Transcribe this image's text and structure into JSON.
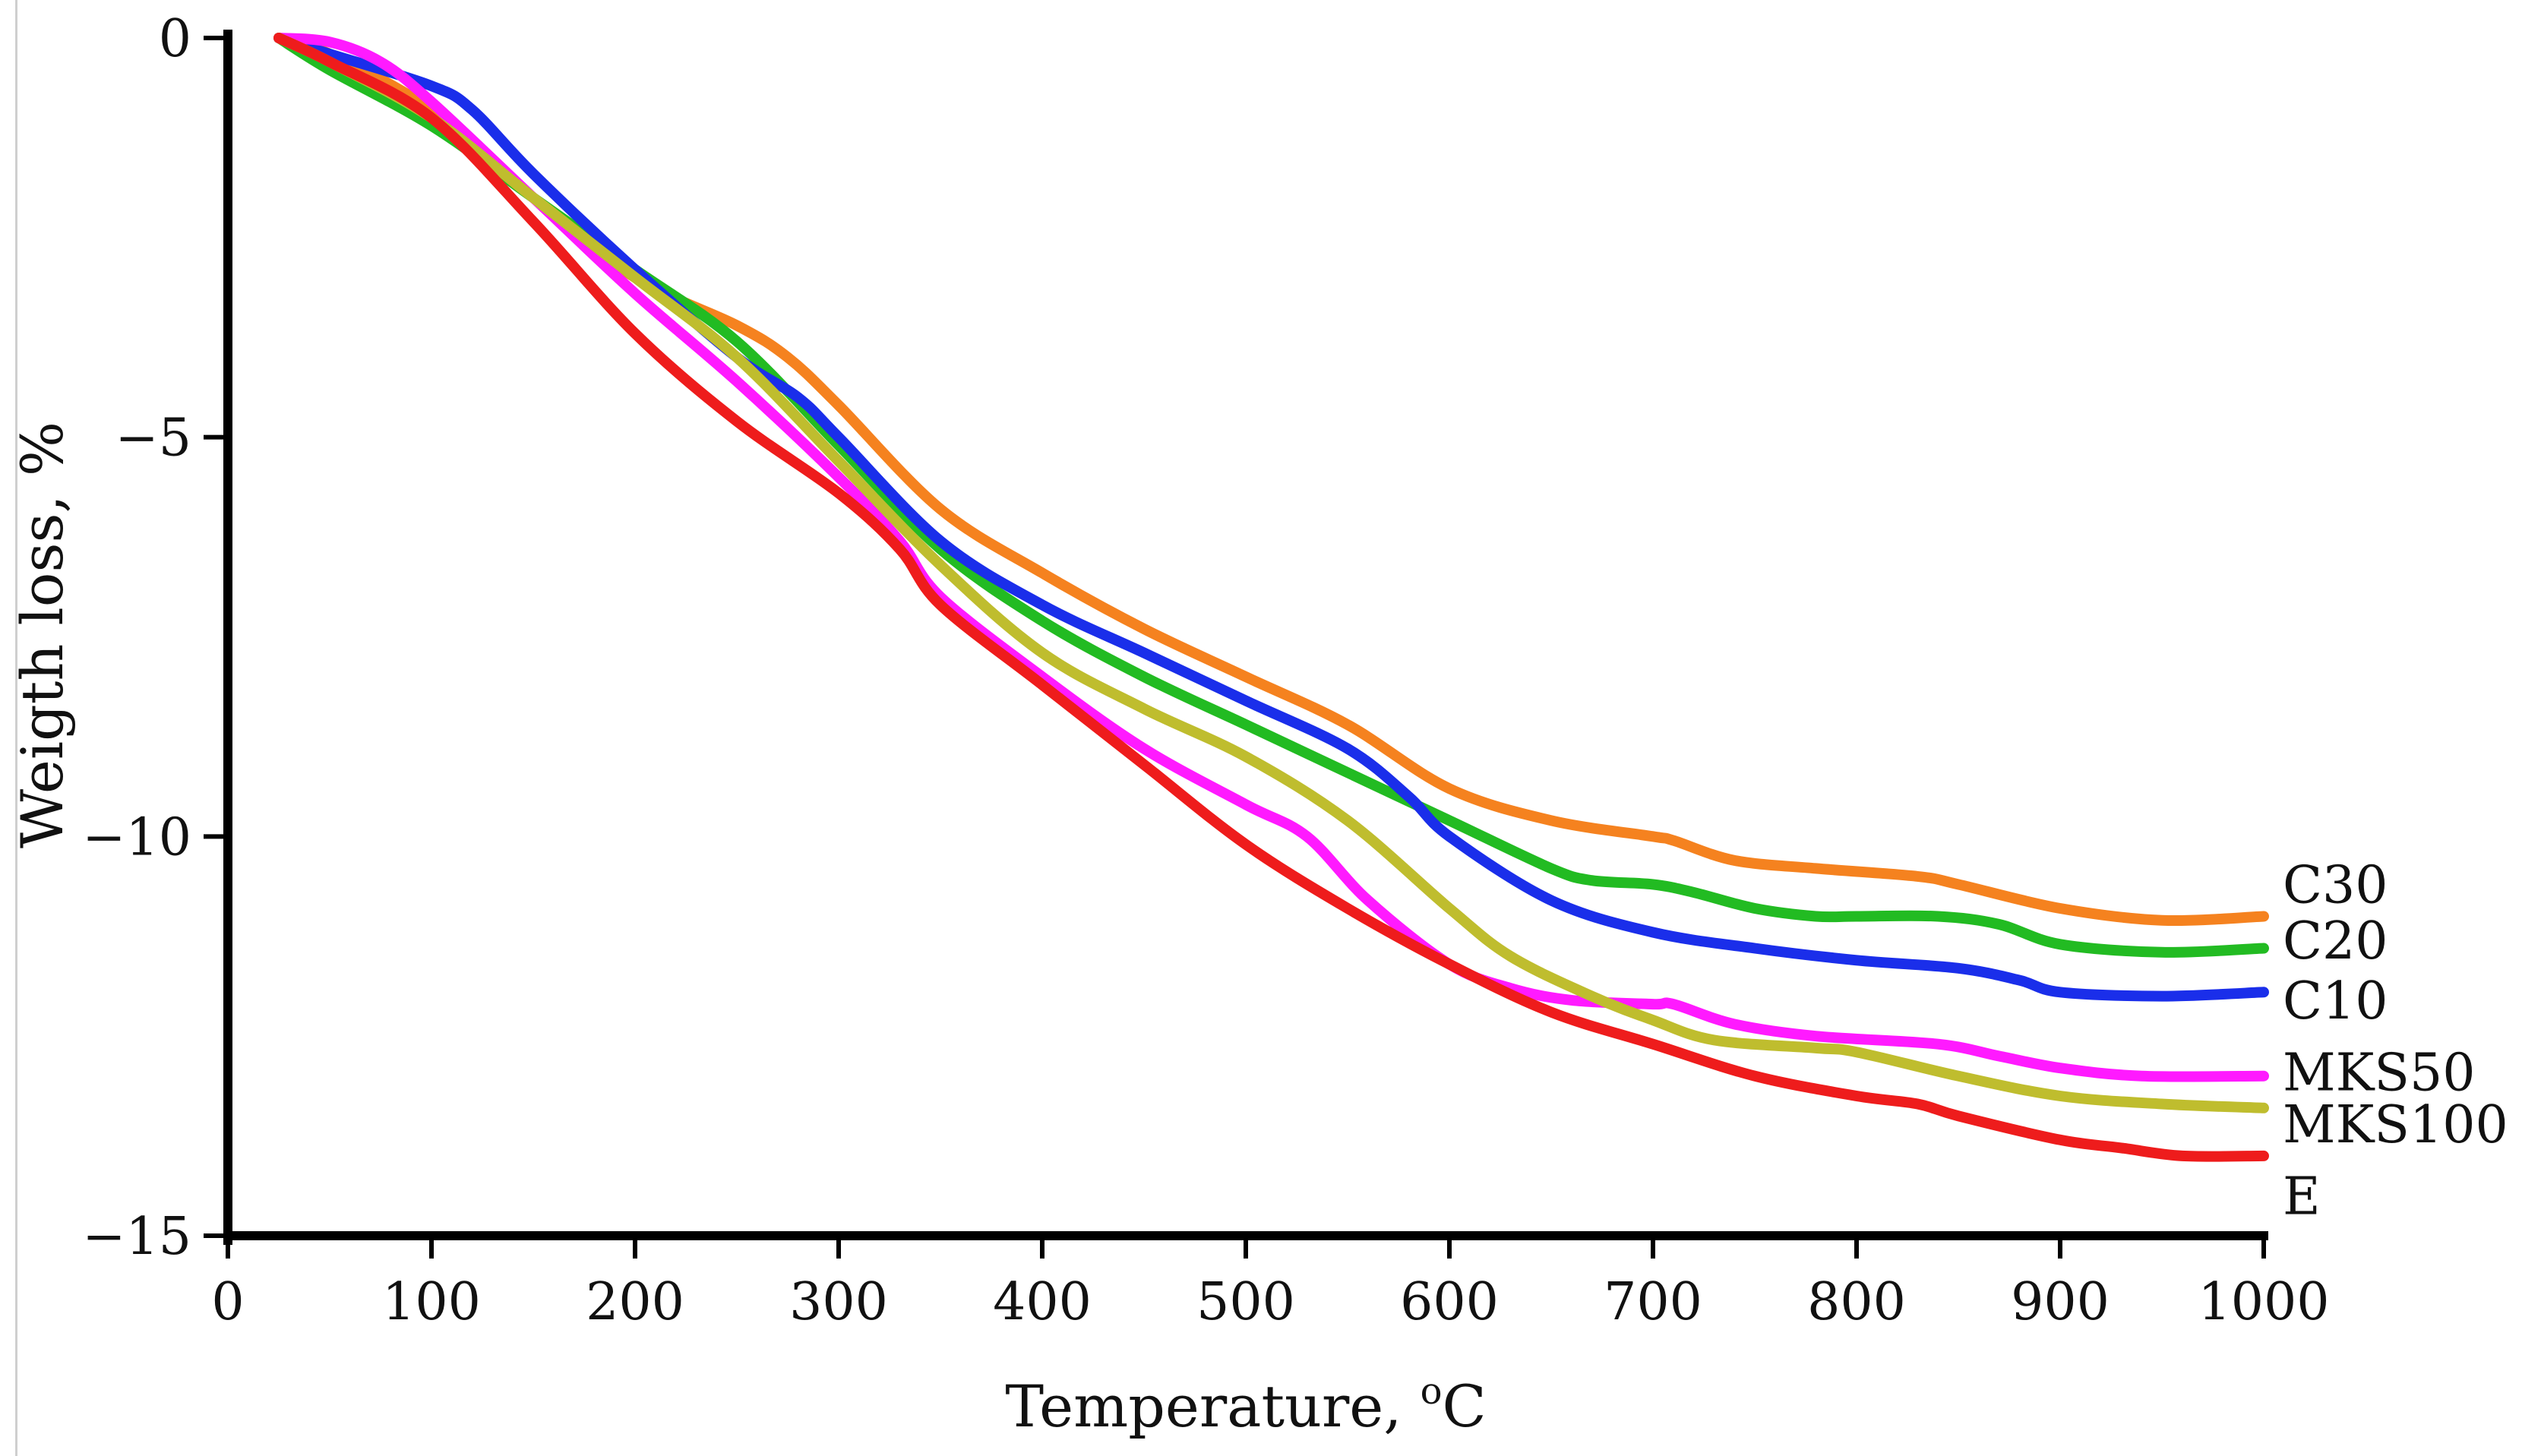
{
  "chart_data": {
    "type": "line",
    "title": "",
    "xlabel": "Temperature, ",
    "xlabel_superscript": "o",
    "xlabel_unit": "C",
    "ylabel": "Weigth loss, %",
    "xlim": [
      0,
      1000
    ],
    "ylim": [
      -15,
      0
    ],
    "x_ticks": [
      0,
      100,
      200,
      300,
      400,
      500,
      600,
      700,
      800,
      900,
      1000
    ],
    "x_tick_labels": [
      "0",
      "100",
      "200",
      "300",
      "400",
      "500",
      "600",
      "700",
      "800",
      "900",
      "1000"
    ],
    "y_ticks": [
      0,
      -5,
      -10,
      -15
    ],
    "y_tick_labels": [
      "0",
      "−5",
      "−10",
      "−15"
    ],
    "grid": false,
    "legend": "direct labels at right end of each line",
    "series": [
      {
        "name": "C30",
        "color": "#f5821f",
        "x": [
          25,
          50,
          100,
          150,
          200,
          250,
          275,
          300,
          350,
          400,
          450,
          500,
          550,
          600,
          650,
          700,
          710,
          740,
          780,
          830,
          850,
          900,
          950,
          1000
        ],
        "y": [
          0,
          -0.2,
          -0.9,
          -2.0,
          -3.0,
          -3.6,
          -4.0,
          -4.6,
          -5.9,
          -6.7,
          -7.4,
          -8.0,
          -8.6,
          -9.4,
          -9.8,
          -10.0,
          -10.05,
          -10.3,
          -10.4,
          -10.5,
          -10.6,
          -10.9,
          -11.05,
          -11.0
        ]
      },
      {
        "name": "C20",
        "color": "#22bb22",
        "x": [
          25,
          50,
          100,
          150,
          200,
          250,
          300,
          350,
          400,
          450,
          500,
          550,
          600,
          650,
          670,
          700,
          720,
          750,
          780,
          800,
          840,
          870,
          900,
          950,
          1000
        ],
        "y": [
          0,
          -0.4,
          -1.1,
          -2.0,
          -2.9,
          -3.8,
          -5.1,
          -6.4,
          -7.3,
          -8.0,
          -8.6,
          -9.2,
          -9.8,
          -10.4,
          -10.55,
          -10.6,
          -10.7,
          -10.9,
          -11.0,
          -11.0,
          -11.0,
          -11.1,
          -11.35,
          -11.45,
          -11.4
        ]
      },
      {
        "name": "C10",
        "color": "#1a2eea",
        "x": [
          25,
          50,
          100,
          120,
          150,
          200,
          250,
          280,
          300,
          350,
          400,
          450,
          500,
          550,
          580,
          600,
          650,
          700,
          750,
          800,
          850,
          880,
          900,
          950,
          1000
        ],
        "y": [
          0,
          -0.2,
          -0.6,
          -0.9,
          -1.7,
          -2.9,
          -4.0,
          -4.5,
          -5.0,
          -6.3,
          -7.1,
          -7.7,
          -8.3,
          -8.9,
          -9.5,
          -10.0,
          -10.8,
          -11.2,
          -11.4,
          -11.55,
          -11.65,
          -11.8,
          -11.95,
          -12.0,
          -11.95
        ]
      },
      {
        "name": "MKS50",
        "color": "#ff1aff",
        "x": [
          25,
          50,
          75,
          100,
          150,
          200,
          250,
          300,
          330,
          350,
          400,
          450,
          500,
          530,
          560,
          600,
          630,
          660,
          700,
          710,
          740,
          780,
          840,
          870,
          900,
          940,
          1000
        ],
        "y": [
          0,
          -0.05,
          -0.3,
          -0.8,
          -2.0,
          -3.2,
          -4.3,
          -5.5,
          -6.3,
          -7.0,
          -8.0,
          -8.9,
          -9.6,
          -10.0,
          -10.8,
          -11.6,
          -11.9,
          -12.05,
          -12.1,
          -12.1,
          -12.35,
          -12.5,
          -12.6,
          -12.75,
          -12.9,
          -13.0,
          -13.0
        ]
      },
      {
        "name": "MKS100",
        "color": "#bfbd2e",
        "x": [
          25,
          50,
          100,
          150,
          200,
          250,
          300,
          350,
          400,
          450,
          500,
          550,
          600,
          630,
          670,
          700,
          730,
          780,
          800,
          850,
          900,
          950,
          1000
        ],
        "y": [
          0,
          -0.3,
          -1.0,
          -2.0,
          -3.0,
          -4.0,
          -5.3,
          -6.6,
          -7.7,
          -8.4,
          -9.0,
          -9.8,
          -10.9,
          -11.5,
          -12.0,
          -12.3,
          -12.55,
          -12.65,
          -12.7,
          -13.0,
          -13.25,
          -13.35,
          -13.4
        ]
      },
      {
        "name": "E",
        "color": "#ee1c1c",
        "x": [
          25,
          50,
          100,
          150,
          200,
          250,
          300,
          330,
          350,
          400,
          450,
          500,
          550,
          600,
          650,
          700,
          750,
          800,
          830,
          850,
          900,
          930,
          960,
          1000
        ],
        "y": [
          0,
          -0.3,
          -1.0,
          -2.3,
          -3.7,
          -4.8,
          -5.7,
          -6.4,
          -7.1,
          -8.1,
          -9.1,
          -10.1,
          -10.9,
          -11.6,
          -12.2,
          -12.6,
          -13.0,
          -13.25,
          -13.35,
          -13.5,
          -13.8,
          -13.9,
          -14.0,
          -14.0
        ]
      }
    ]
  }
}
